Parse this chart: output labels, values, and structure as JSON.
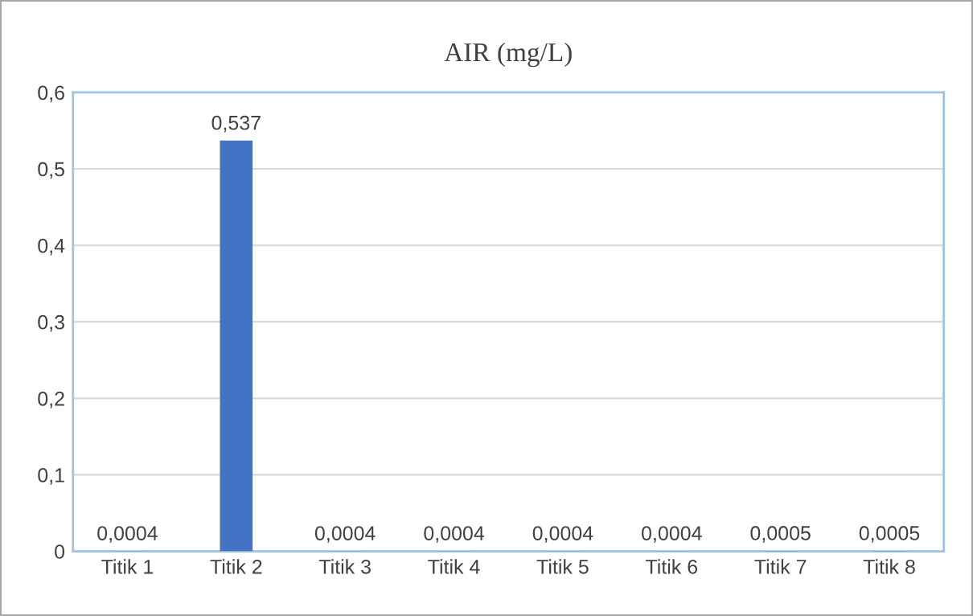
{
  "chart_data": {
    "type": "bar",
    "title": "AIR (mg/L)",
    "categories": [
      "Titik 1",
      "Titik 2",
      "Titik 3",
      "Titik 4",
      "Titik 5",
      "Titik 6",
      "Titik 7",
      "Titik 8"
    ],
    "values": [
      0.0004,
      0.537,
      0.0004,
      0.0004,
      0.0004,
      0.0004,
      0.0005,
      0.0005
    ],
    "value_labels": [
      "0,0004",
      "0,537",
      "0,0004",
      "0,0004",
      "0,0004",
      "0,0004",
      "0,0005",
      "0,0005"
    ],
    "color": "#4472c4",
    "ylim": [
      0,
      0.6
    ],
    "yticks": [
      {
        "value": 0,
        "label": "0"
      },
      {
        "value": 0.1,
        "label": "0,1"
      },
      {
        "value": 0.2,
        "label": "0,2"
      },
      {
        "value": 0.3,
        "label": "0,3"
      },
      {
        "value": 0.4,
        "label": "0,4"
      },
      {
        "value": 0.5,
        "label": "0,5"
      },
      {
        "value": 0.6,
        "label": "0,6"
      }
    ],
    "grid": "y"
  }
}
